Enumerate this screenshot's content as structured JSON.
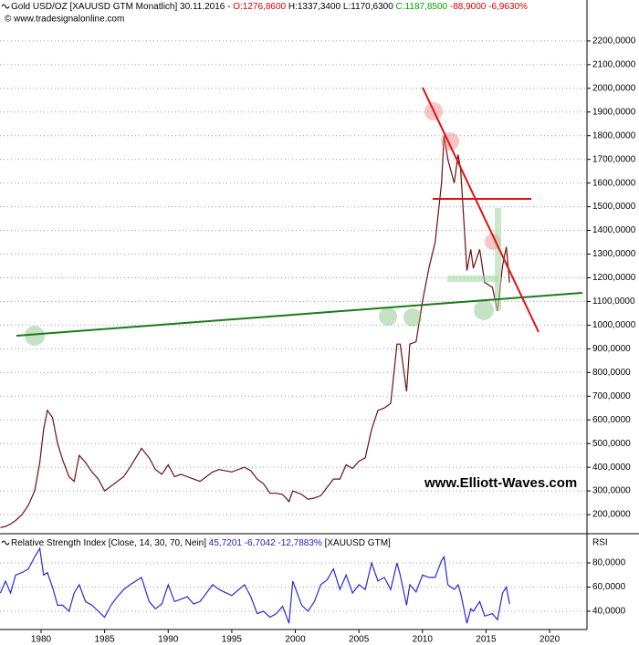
{
  "chart_data": [
    {
      "type": "line",
      "title": "Gold USD/OZ [XAUUSD GTM  Monatlich] 30.11.2016 - ",
      "header_parts": [
        {
          "text": "O:1276,8600",
          "color": "#d00000"
        },
        {
          "text": " H:1337,3400",
          "color": "#000000"
        },
        {
          "text": " L:1170,6300",
          "color": "#000000"
        },
        {
          "text": " C:1187,8500",
          "color": "#00a000"
        },
        {
          "text": " -88,9000 -6,9630%",
          "color": "#d00000"
        }
      ],
      "subtitle": "© www.tradesignalonline.com",
      "watermark": "www.Elliott-Waves.com",
      "x": [
        1976.8,
        1977.2,
        1977.6,
        1978.0,
        1978.5,
        1979.0,
        1979.5,
        1979.9,
        1980.2,
        1980.5,
        1980.9,
        1981.3,
        1981.7,
        1982.2,
        1982.6,
        1983.0,
        1983.5,
        1984.0,
        1984.5,
        1985.0,
        1985.5,
        1986.0,
        1986.5,
        1987.0,
        1987.9,
        1988.5,
        1989.0,
        1989.5,
        1990.0,
        1990.5,
        1991.0,
        1991.5,
        1992.0,
        1992.5,
        1993.5,
        1994.0,
        1995.0,
        1996.0,
        1996.5,
        1997.0,
        1997.5,
        1998.0,
        1998.5,
        1999.0,
        1999.5,
        1999.8,
        2000.5,
        2001.0,
        2001.5,
        2002.0,
        2002.5,
        2003.0,
        2003.5,
        2004.0,
        2004.5,
        2005.0,
        2005.5,
        2006.0,
        2006.5,
        2007.0,
        2007.5,
        2008.0,
        2008.25,
        2008.75,
        2009.0,
        2009.5,
        2010.0,
        2010.5,
        2011.0,
        2011.5,
        2011.7,
        2012.0,
        2012.5,
        2012.8,
        2013.0,
        2013.5,
        2013.8,
        2014.0,
        2014.5,
        2014.9,
        2015.5,
        2015.9,
        2016.3,
        2016.6,
        2016.85
      ],
      "series": [
        {
          "name": "Gold",
          "color": "#6b1010",
          "values": [
            145,
            150,
            160,
            175,
            200,
            240,
            300,
            420,
            560,
            640,
            610,
            500,
            430,
            360,
            340,
            450,
            420,
            380,
            350,
            300,
            320,
            340,
            360,
            400,
            480,
            440,
            390,
            370,
            410,
            360,
            370,
            360,
            350,
            340,
            380,
            390,
            380,
            400,
            385,
            350,
            330,
            290,
            290,
            285,
            255,
            300,
            285,
            265,
            270,
            280,
            315,
            350,
            350,
            410,
            395,
            425,
            440,
            560,
            640,
            650,
            670,
            920,
            920,
            720,
            920,
            930,
            1100,
            1240,
            1350,
            1600,
            1800,
            1700,
            1600,
            1720,
            1660,
            1230,
            1320,
            1240,
            1320,
            1180,
            1160,
            1060,
            1250,
            1330,
            1180
          ]
        }
      ],
      "xlim": [
        1976.77,
        2022.94
      ],
      "ylim": [
        127,
        2373
      ],
      "yticks": [
        {
          "value": 200,
          "label": "200,0000"
        },
        {
          "value": 300,
          "label": "300,0000"
        },
        {
          "value": 400,
          "label": "400,0000"
        },
        {
          "value": 500,
          "label": "500,0000"
        },
        {
          "value": 600,
          "label": "600,0000"
        },
        {
          "value": 700,
          "label": "700,0000"
        },
        {
          "value": 800,
          "label": "800,0000"
        },
        {
          "value": 900,
          "label": "900,0000"
        },
        {
          "value": 1000,
          "label": "1000,0000"
        },
        {
          "value": 1100,
          "label": "1100,0000"
        },
        {
          "value": 1200,
          "label": "1200,0000"
        },
        {
          "value": 1300,
          "label": "1300,0000"
        },
        {
          "value": 1400,
          "label": "1400,0000"
        },
        {
          "value": 1500,
          "label": "1500,0000"
        },
        {
          "value": 1600,
          "label": "1600,0000"
        },
        {
          "value": 1700,
          "label": "1700,0000"
        },
        {
          "value": 1800,
          "label": "1800,0000"
        },
        {
          "value": 1900,
          "label": "1900,0000"
        },
        {
          "value": 2000,
          "label": "2000,0000"
        },
        {
          "value": 2100,
          "label": "2100,0000"
        },
        {
          "value": 2200,
          "label": "2200,0000"
        }
      ],
      "grid": true
    },
    {
      "type": "line",
      "title": "Relative Strength Index [Close, 14, 30, 70, Nein]",
      "header_parts": [
        {
          "text": " 45,7201 -6,7042 -12,7883%",
          "color": "#2020c0"
        },
        {
          "text": " [XAUUSD GTM]",
          "color": "#000000"
        }
      ],
      "ylabel": "RSI",
      "x": [
        1976.8,
        1977.2,
        1977.6,
        1978.0,
        1978.5,
        1979.0,
        1979.5,
        1979.9,
        1980.2,
        1980.5,
        1980.9,
        1981.3,
        1981.7,
        1982.2,
        1982.6,
        1983.0,
        1983.5,
        1984.0,
        1984.5,
        1985.0,
        1985.5,
        1986.0,
        1986.5,
        1987.0,
        1987.9,
        1988.5,
        1989.0,
        1989.5,
        1990.0,
        1990.5,
        1991.0,
        1991.5,
        1992.0,
        1992.5,
        1993.5,
        1994.0,
        1995.0,
        1996.0,
        1996.5,
        1997.0,
        1997.5,
        1998.0,
        1998.5,
        1999.0,
        1999.5,
        1999.8,
        2000.5,
        2001.0,
        2001.5,
        2002.0,
        2002.5,
        2003.0,
        2003.5,
        2004.0,
        2004.5,
        2005.0,
        2005.5,
        2006.0,
        2006.5,
        2007.0,
        2007.5,
        2008.0,
        2008.25,
        2008.75,
        2009.0,
        2009.5,
        2010.0,
        2010.5,
        2011.0,
        2011.5,
        2011.7,
        2012.0,
        2012.5,
        2012.8,
        2013.0,
        2013.5,
        2013.8,
        2014.0,
        2014.5,
        2014.9,
        2015.5,
        2015.9,
        2016.3,
        2016.6,
        2016.85
      ],
      "series": [
        {
          "name": "RSI",
          "color": "#2a2ad0",
          "values": [
            55,
            65,
            55,
            70,
            72,
            75,
            85,
            92,
            70,
            72,
            60,
            45,
            45,
            40,
            55,
            62,
            48,
            45,
            40,
            35,
            45,
            52,
            58,
            62,
            68,
            48,
            42,
            46,
            62,
            48,
            50,
            52,
            46,
            48,
            62,
            58,
            53,
            62,
            52,
            38,
            40,
            35,
            38,
            44,
            30,
            65,
            45,
            40,
            48,
            62,
            66,
            75,
            58,
            70,
            55,
            62,
            58,
            80,
            65,
            68,
            58,
            80,
            70,
            45,
            62,
            56,
            70,
            68,
            68,
            82,
            85,
            62,
            58,
            62,
            55,
            30,
            42,
            40,
            48,
            36,
            38,
            33,
            55,
            60,
            46
          ]
        }
      ],
      "xlim": [
        1976.77,
        2022.94
      ],
      "ylim": [
        24.9,
        101.9
      ],
      "yticks": [
        {
          "value": 40,
          "label": "40,0000"
        },
        {
          "value": 60,
          "label": "60,0000"
        },
        {
          "value": 80,
          "label": "80,0000"
        }
      ],
      "xticks": [
        1980,
        1985,
        1990,
        1995,
        2000,
        2005,
        2010,
        2015,
        2020
      ],
      "grid": true
    }
  ]
}
